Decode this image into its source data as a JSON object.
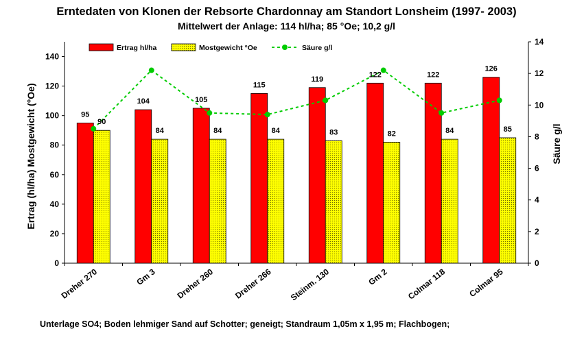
{
  "header": {
    "title": "Erntedaten von Klonen der Rebsorte  Chardonnay am Standort Lonsheim (1997- 2003)",
    "subtitle": "Mittelwert der Anlage: 114 hl/ha; 85 °Oe; 10,2 g/l"
  },
  "footer": {
    "text": "Unterlage SO4;  Boden lehmiger Sand auf Schotter;  geneigt; Standraum 1,05m x 1,95 m; Flachbogen;"
  },
  "chart_data": {
    "type": "bar",
    "categories": [
      "Dreher 270",
      "Gm 3",
      "Dreher 260",
      "Dreher 266",
      "Steinm. 130",
      "Gm 2",
      "Colmar 118",
      "Colmar 95"
    ],
    "series": [
      {
        "name": "Ertrag hl/ha",
        "type": "bar",
        "axis": "left",
        "color": "#ff0000",
        "values": [
          95,
          104,
          105,
          115,
          119,
          122,
          122,
          126
        ]
      },
      {
        "name": "Mostgewicht °Oe",
        "type": "bar",
        "axis": "left",
        "color": "#ffff00",
        "values": [
          90,
          84,
          84,
          84,
          83,
          82,
          84,
          85
        ]
      },
      {
        "name": "Säure g/l",
        "type": "line",
        "axis": "right",
        "color": "#00cc00",
        "values": [
          8.5,
          12.2,
          9.5,
          9.4,
          10.3,
          12.2,
          9.5,
          10.3
        ]
      }
    ],
    "ylabel": "Ertrag (hl/ha)  Mostgewicht (°Oe)",
    "ylim": [
      0,
      150
    ],
    "yticks": [
      0,
      20,
      40,
      60,
      80,
      100,
      120,
      140
    ],
    "y2label": "Säure g/l",
    "y2lim": [
      0,
      14
    ],
    "y2ticks": [
      0,
      2,
      4,
      6,
      8,
      10,
      12,
      14
    ],
    "legend": "top",
    "grid": false
  }
}
